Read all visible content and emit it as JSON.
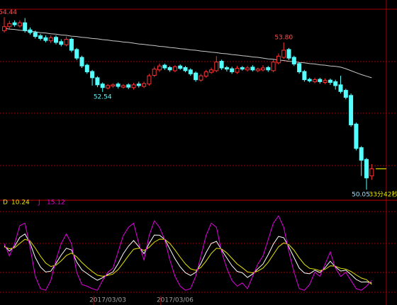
{
  "chart_data": [
    {
      "type": "candlestick",
      "open": [
        54.1,
        54.2,
        54.3,
        54.22,
        54.3,
        54.12,
        54.05,
        53.97,
        53.92,
        53.84,
        53.93,
        53.82,
        53.74,
        53.88,
        53.62,
        53.42,
        53.22,
        53.06,
        52.9,
        52.74,
        52.64,
        52.69,
        52.74,
        52.66,
        52.72,
        52.65,
        52.74,
        52.68,
        52.74,
        52.96,
        53.1,
        53.22,
        53.16,
        53.08,
        53.2,
        53.16,
        53.1,
        53.02,
        52.84,
        52.94,
        53.04,
        53.08,
        53.32,
        53.16,
        53.13,
        53.04,
        53.16,
        53.1,
        53.17,
        53.08,
        53.1,
        53.16,
        53.08,
        53.28,
        53.42,
        53.62,
        53.42,
        53.26,
        53.06,
        52.86,
        52.8,
        52.86,
        52.78,
        52.84,
        52.8,
        52.72,
        52.58,
        52.45,
        51.72,
        51.12,
        50.82,
        50.4
      ],
      "high": [
        54.44,
        54.35,
        54.36,
        54.36,
        54.42,
        54.18,
        54.1,
        54.02,
        53.98,
        53.98,
        53.98,
        53.88,
        53.95,
        53.92,
        53.66,
        53.46,
        53.26,
        53.1,
        52.94,
        52.78,
        52.74,
        52.76,
        52.78,
        52.74,
        52.76,
        52.77,
        52.8,
        52.8,
        53.0,
        53.18,
        53.26,
        53.26,
        53.2,
        53.22,
        53.24,
        53.2,
        53.14,
        53.06,
        53.0,
        53.1,
        53.16,
        53.45,
        53.36,
        53.2,
        53.18,
        53.2,
        53.2,
        53.2,
        53.22,
        53.16,
        53.22,
        53.2,
        53.36,
        53.52,
        53.8,
        53.66,
        53.46,
        53.3,
        53.1,
        52.9,
        52.9,
        52.9,
        52.88,
        52.88,
        52.85,
        52.95,
        52.62,
        52.5,
        51.76,
        51.16,
        50.86,
        50.7
      ],
      "low": [
        54.05,
        54.15,
        54.2,
        54.18,
        54.05,
        54.0,
        53.9,
        53.85,
        53.8,
        53.78,
        53.75,
        53.7,
        53.7,
        53.55,
        53.35,
        53.15,
        53.0,
        52.7,
        52.66,
        52.54,
        52.6,
        52.64,
        52.63,
        52.62,
        52.61,
        52.6,
        52.65,
        52.64,
        52.7,
        52.92,
        53.05,
        53.1,
        53.05,
        53.04,
        53.1,
        53.04,
        52.95,
        52.8,
        52.8,
        52.9,
        53.0,
        53.04,
        53.1,
        53.06,
        53.0,
        53.0,
        53.08,
        53.06,
        53.06,
        53.04,
        53.06,
        53.05,
        53.04,
        53.24,
        53.38,
        53.35,
        53.2,
        53.0,
        52.8,
        52.78,
        52.76,
        52.75,
        52.74,
        52.72,
        52.6,
        52.5,
        52.35,
        51.65,
        51.05,
        50.4,
        50.05,
        50.3
      ],
      "close": [
        54.2,
        54.28,
        54.25,
        54.3,
        54.1,
        54.05,
        53.95,
        53.9,
        53.85,
        53.92,
        53.8,
        53.75,
        53.88,
        53.6,
        53.4,
        53.2,
        53.05,
        52.9,
        52.72,
        52.65,
        52.7,
        52.72,
        52.68,
        52.7,
        52.66,
        52.72,
        52.7,
        52.75,
        52.95,
        53.12,
        53.2,
        53.15,
        53.1,
        53.18,
        53.14,
        53.08,
        53.0,
        52.85,
        52.95,
        53.05,
        53.1,
        53.3,
        53.15,
        53.12,
        53.05,
        53.14,
        53.12,
        53.15,
        53.1,
        53.12,
        53.15,
        53.1,
        53.3,
        53.45,
        53.6,
        53.4,
        53.25,
        53.05,
        52.85,
        52.82,
        52.85,
        52.8,
        52.83,
        52.78,
        52.7,
        52.55,
        52.4,
        51.7,
        51.1,
        50.8,
        50.35,
        50.58
      ],
      "ma": [
        54.16,
        54.14,
        54.13,
        54.11,
        54.1,
        54.08,
        54.07,
        54.05,
        54.04,
        54.02,
        54.01,
        53.99,
        53.98,
        53.96,
        53.95,
        53.93,
        53.92,
        53.9,
        53.89,
        53.87,
        53.86,
        53.84,
        53.83,
        53.81,
        53.8,
        53.78,
        53.76,
        53.75,
        53.73,
        53.72,
        53.7,
        53.69,
        53.67,
        53.66,
        53.64,
        53.63,
        53.61,
        53.6,
        53.58,
        53.57,
        53.55,
        53.54,
        53.52,
        53.51,
        53.49,
        53.48,
        53.46,
        53.45,
        53.43,
        53.42,
        53.4,
        53.38,
        53.37,
        53.35,
        53.34,
        53.32,
        53.31,
        53.29,
        53.28,
        53.26,
        53.25,
        53.23,
        53.22,
        53.2,
        53.19,
        53.17,
        53.13,
        53.08,
        53.03,
        52.98,
        52.94,
        52.9
      ],
      "high_labels": [
        "54.44",
        null,
        null,
        null,
        null,
        null,
        null,
        null,
        null,
        null,
        null,
        null,
        null,
        null,
        null,
        null,
        null,
        null,
        null,
        null,
        null,
        null,
        null,
        null,
        null,
        null,
        null,
        null,
        null,
        null,
        null,
        null,
        null,
        null,
        null,
        null,
        null,
        null,
        null,
        null,
        null,
        null,
        null,
        null,
        null,
        null,
        null,
        null,
        null,
        null,
        null,
        null,
        null,
        null,
        "53.80",
        null,
        null,
        null,
        null,
        null,
        null,
        null,
        null,
        null,
        null,
        null,
        null,
        null,
        null,
        null,
        null,
        null
      ],
      "low_labels": [
        null,
        null,
        null,
        null,
        null,
        null,
        null,
        null,
        null,
        null,
        null,
        null,
        null,
        null,
        null,
        null,
        null,
        null,
        null,
        "52.54",
        null,
        null,
        null,
        null,
        null,
        null,
        null,
        null,
        null,
        null,
        null,
        null,
        null,
        null,
        null,
        null,
        null,
        null,
        null,
        null,
        null,
        null,
        null,
        null,
        null,
        null,
        null,
        null,
        null,
        null,
        null,
        null,
        null,
        null,
        null,
        null,
        null,
        null,
        null,
        null,
        null,
        null,
        null,
        null,
        null,
        null,
        null,
        null,
        null,
        null,
        "50.05",
        null
      ],
      "countdown": "33分42秒",
      "up_color": "#ff3232",
      "down_color": "#54ffff",
      "ma_color": "#c8c8c8",
      "last_color": "#ffff00",
      "ylim": [
        49.78,
        54.88
      ]
    },
    {
      "type": "line",
      "categories": [
        null,
        null,
        null,
        null,
        null,
        null,
        null,
        null,
        null,
        null,
        null,
        null,
        null,
        null,
        null,
        null,
        null,
        null,
        null,
        null,
        "2017/03/03",
        null,
        null,
        null,
        null,
        null,
        null,
        null,
        null,
        null,
        null,
        null,
        null,
        "2017/03/06",
        null,
        null,
        null,
        null,
        null,
        null,
        null,
        null,
        null,
        null,
        null,
        null,
        null,
        null,
        null,
        null,
        null,
        null,
        null,
        null,
        null,
        null,
        null,
        null,
        null,
        null,
        null,
        null,
        null,
        null,
        null,
        null,
        null,
        null,
        null,
        null,
        null,
        null
      ],
      "series": [
        {
          "color": "#ffffff",
          "values": [
            57.3,
            50.9,
            56.7,
            67.6,
            71.9,
            60.5,
            43.1,
            31.5,
            25.3,
            26.4,
            35.8,
            46.0,
            54.4,
            52.3,
            37.5,
            28.0,
            23.5,
            19.0,
            15.3,
            18.4,
            22.4,
            25.3,
            35.5,
            47.7,
            56.9,
            63.8,
            56.4,
            47.8,
            60.3,
            70.6,
            70.3,
            65.3,
            53.5,
            41.5,
            31.6,
            24.5,
            21.1,
            24.9,
            35.6,
            49.1,
            60.3,
            62.9,
            52.3,
            42.5,
            33.0,
            26.1,
            24.4,
            18.7,
            22.9,
            29.3,
            35.1,
            46.5,
            59.5,
            68.8,
            67.3,
            55.9,
            43.0,
            30.1,
            24.1,
            23.2,
            27.5,
            24.7,
            30.7,
            38.6,
            31.5,
            26.5,
            27.5,
            22.3,
            16.2,
            13.0,
            13.3,
            11.87
          ]
        },
        {
          "name": "D",
          "color": "#e6e600",
          "values": [
            56.0,
            53.8,
            55.0,
            60.4,
            65.3,
            63.2,
            54.6,
            44.7,
            36.4,
            32.1,
            33.7,
            39.0,
            45.6,
            48.5,
            43.8,
            37.0,
            31.2,
            26.0,
            21.4,
            20.1,
            21.1,
            22.9,
            28.3,
            36.6,
            45.3,
            53.2,
            54.6,
            51.7,
            55.4,
            61.9,
            65.5,
            65.4,
            60.3,
            52.2,
            43.4,
            35.3,
            29.2,
            27.4,
            30.9,
            38.7,
            48.0,
            54.4,
            53.5,
            48.8,
            42.0,
            35.2,
            30.6,
            25.5,
            24.4,
            26.5,
            30.2,
            37.2,
            46.8,
            56.2,
            61.0,
            58.8,
            52.0,
            42.6,
            34.7,
            29.8,
            28.8,
            27.0,
            28.6,
            32.9,
            32.3,
            29.8,
            28.8,
            26.0,
            21.8,
            18.0,
            16.0,
            10.24
          ]
        },
        {
          "name": "J",
          "color": "#e000e0",
          "values": [
            60,
            45,
            60,
            82,
            85,
            55,
            20,
            5,
            3,
            15,
            40,
            60,
            72,
            60,
            25,
            10,
            8,
            5,
            3,
            15,
            25,
            30,
            50,
            70,
            80,
            85,
            60,
            40,
            70,
            88,
            80,
            65,
            40,
            20,
            8,
            3,
            5,
            20,
            45,
            70,
            85,
            80,
            50,
            30,
            15,
            8,
            12,
            5,
            20,
            35,
            45,
            65,
            85,
            94,
            80,
            50,
            25,
            5,
            3,
            10,
            25,
            20,
            35,
            50,
            30,
            20,
            25,
            15,
            5,
            3,
            8,
            15.12
          ]
        }
      ],
      "ylim": [
        -15,
        107
      ]
    }
  ]
}
